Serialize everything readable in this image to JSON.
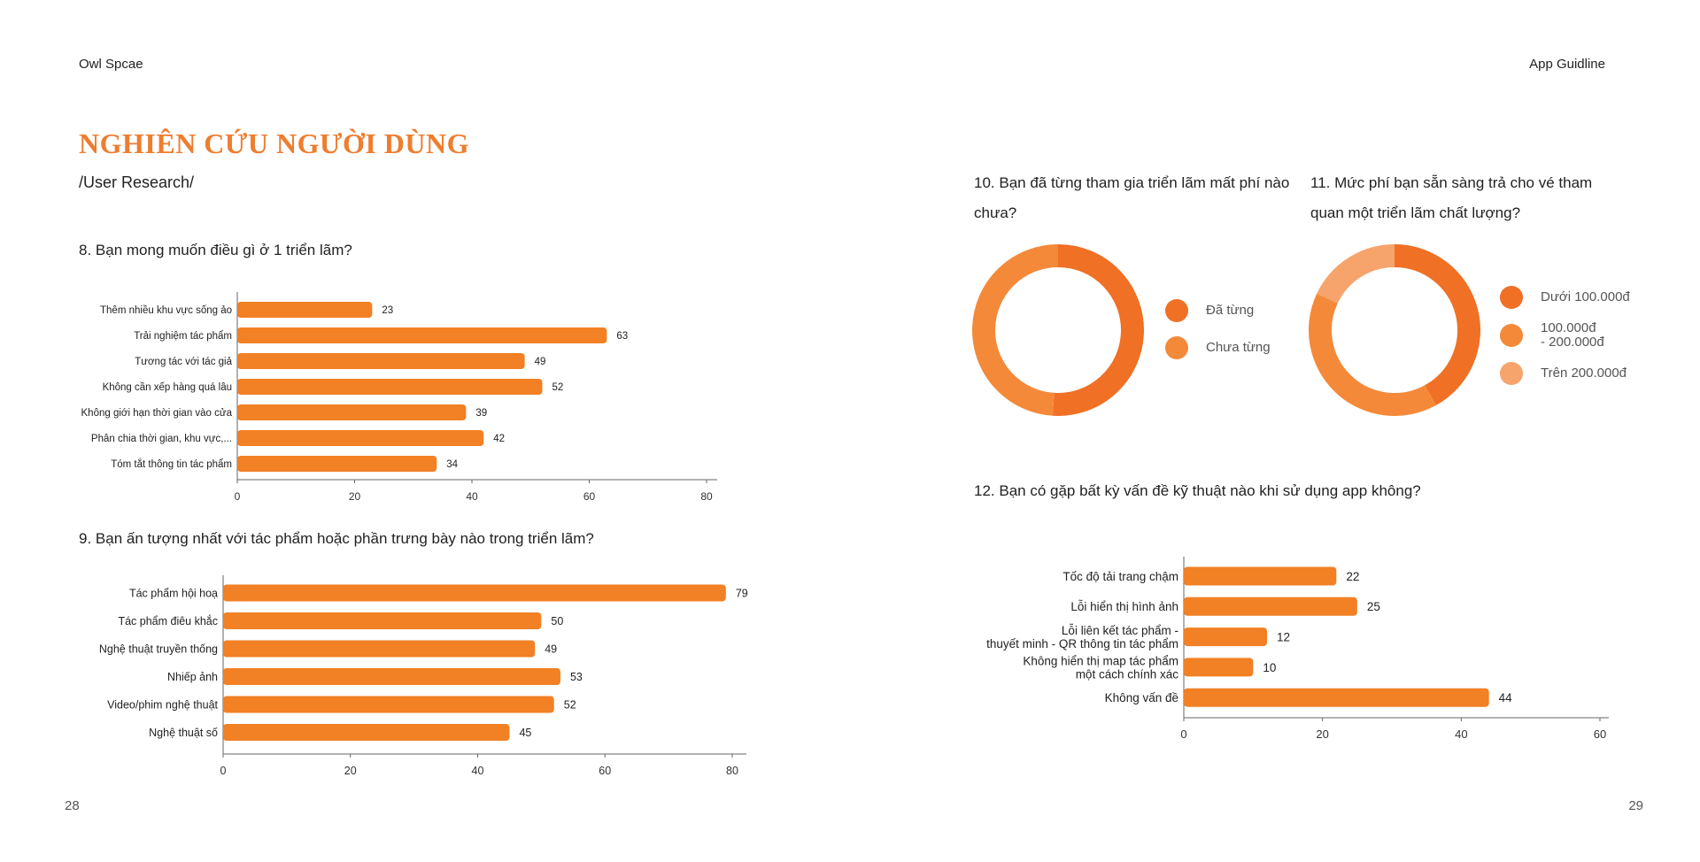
{
  "header": {
    "left": "Owl Spcae",
    "right": "App Guidline"
  },
  "title": "NGHIÊN CỨU NGƯỜI DÙNG",
  "subtitle": "/User Research/",
  "page_numbers": {
    "left": "28",
    "right": "29"
  },
  "colors": {
    "accent": "#ee7d2e",
    "bar": "#f28024",
    "donut_dark": "#f07025",
    "donut_mid": "#f4893a",
    "donut_light": "#f7a46c"
  },
  "chart_data": [
    {
      "id": "q8",
      "type": "bar",
      "orientation": "horizontal",
      "title": "8. Bạn mong muốn điều gì ở 1 triển lãm?",
      "categories": [
        "Thêm nhiều khu vực sống ảo",
        "Trải nghiệm tác phẩm",
        "Tương tác với tác giả",
        "Không cần xếp hàng quá lâu",
        "Không giới hạn thời gian vào cửa",
        "Phân chia thời gian, khu vực,...",
        "Tóm tắt thông tin tác phẩm"
      ],
      "values": [
        23,
        63,
        49,
        52,
        39,
        42,
        34
      ],
      "xlim": [
        0,
        80
      ],
      "xticks": [
        "0",
        "20",
        "40",
        "60",
        "80"
      ],
      "data_labels": true
    },
    {
      "id": "q9",
      "type": "bar",
      "orientation": "horizontal",
      "title": "9. Bạn ấn tượng nhất với tác phẩm hoặc phần trưng bày nào trong triển lãm?",
      "categories": [
        "Tác phẩm hội hoạ",
        "Tác phẩm điêu khắc",
        "Nghệ thuật truyền thống",
        "Nhiếp ảnh",
        "Video/phim nghệ thuật",
        "Nghệ thuật số"
      ],
      "values": [
        79,
        50,
        49,
        53,
        52,
        45
      ],
      "xlim": [
        0,
        80
      ],
      "xticks": [
        "0",
        "20",
        "40",
        "60",
        "80"
      ],
      "data_labels": true
    },
    {
      "id": "q10",
      "type": "pie",
      "style": "donut",
      "title": "10. Bạn đã từng tham gia triển lãm mất phí nào chưa?",
      "categories": [
        "Đã từng",
        "Chưa từng"
      ],
      "values": [
        51,
        49
      ],
      "colors": [
        "#f07025",
        "#f4893a"
      ],
      "legend": "right"
    },
    {
      "id": "q11",
      "type": "pie",
      "style": "donut",
      "title": "11. Mức phí bạn sẵn sàng trả cho vé tham quan một triển lãm chất lượng?",
      "categories": [
        "Dưới 100.000đ",
        "100.000đ\n- 200.000đ",
        "Trên 200.000đ"
      ],
      "values": [
        42,
        40,
        18
      ],
      "colors": [
        "#f07025",
        "#f4893a",
        "#f7a46c"
      ],
      "legend": "right"
    },
    {
      "id": "q12",
      "type": "bar",
      "orientation": "horizontal",
      "title": "12. Bạn có gặp bất kỳ vấn đề kỹ thuật nào khi sử dụng app không?",
      "categories": [
        "Tốc độ tải trang chậm",
        "Lỗi hiển thị hình ảnh",
        "Lỗi liên kết tác phẩm -\nthuyết minh - QR thông tin tác phẩm",
        "Không hiển thị map tác phẩm\nmột cách chính xác",
        "Không vấn đề"
      ],
      "values": [
        22,
        25,
        12,
        10,
        44
      ],
      "xlim": [
        0,
        60
      ],
      "xticks": [
        "0",
        "20",
        "40",
        "60"
      ],
      "data_labels": true
    }
  ]
}
